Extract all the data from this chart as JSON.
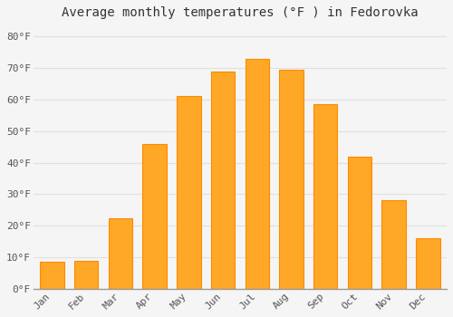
{
  "title": "Average monthly temperatures (°F ) in Fedorovka",
  "months": [
    "Jan",
    "Feb",
    "Mar",
    "Apr",
    "May",
    "Jun",
    "Jul",
    "Aug",
    "Sep",
    "Oct",
    "Nov",
    "Dec"
  ],
  "values": [
    8.5,
    9.0,
    22.5,
    46.0,
    61.0,
    69.0,
    73.0,
    69.5,
    58.5,
    42.0,
    28.0,
    16.0
  ],
  "bar_color": "#FFA726",
  "bar_edge_color": "#FB8C00",
  "background_color": "#F5F5F5",
  "plot_bg_color": "#F5F5F5",
  "grid_color": "#E0E0E0",
  "ylim": [
    0,
    84
  ],
  "yticks": [
    0,
    10,
    20,
    30,
    40,
    50,
    60,
    70,
    80
  ],
  "ytick_labels": [
    "0°F",
    "10°F",
    "20°F",
    "30°F",
    "40°F",
    "50°F",
    "60°F",
    "70°F",
    "80°F"
  ],
  "title_fontsize": 10,
  "tick_fontsize": 8,
  "font_family": "monospace"
}
